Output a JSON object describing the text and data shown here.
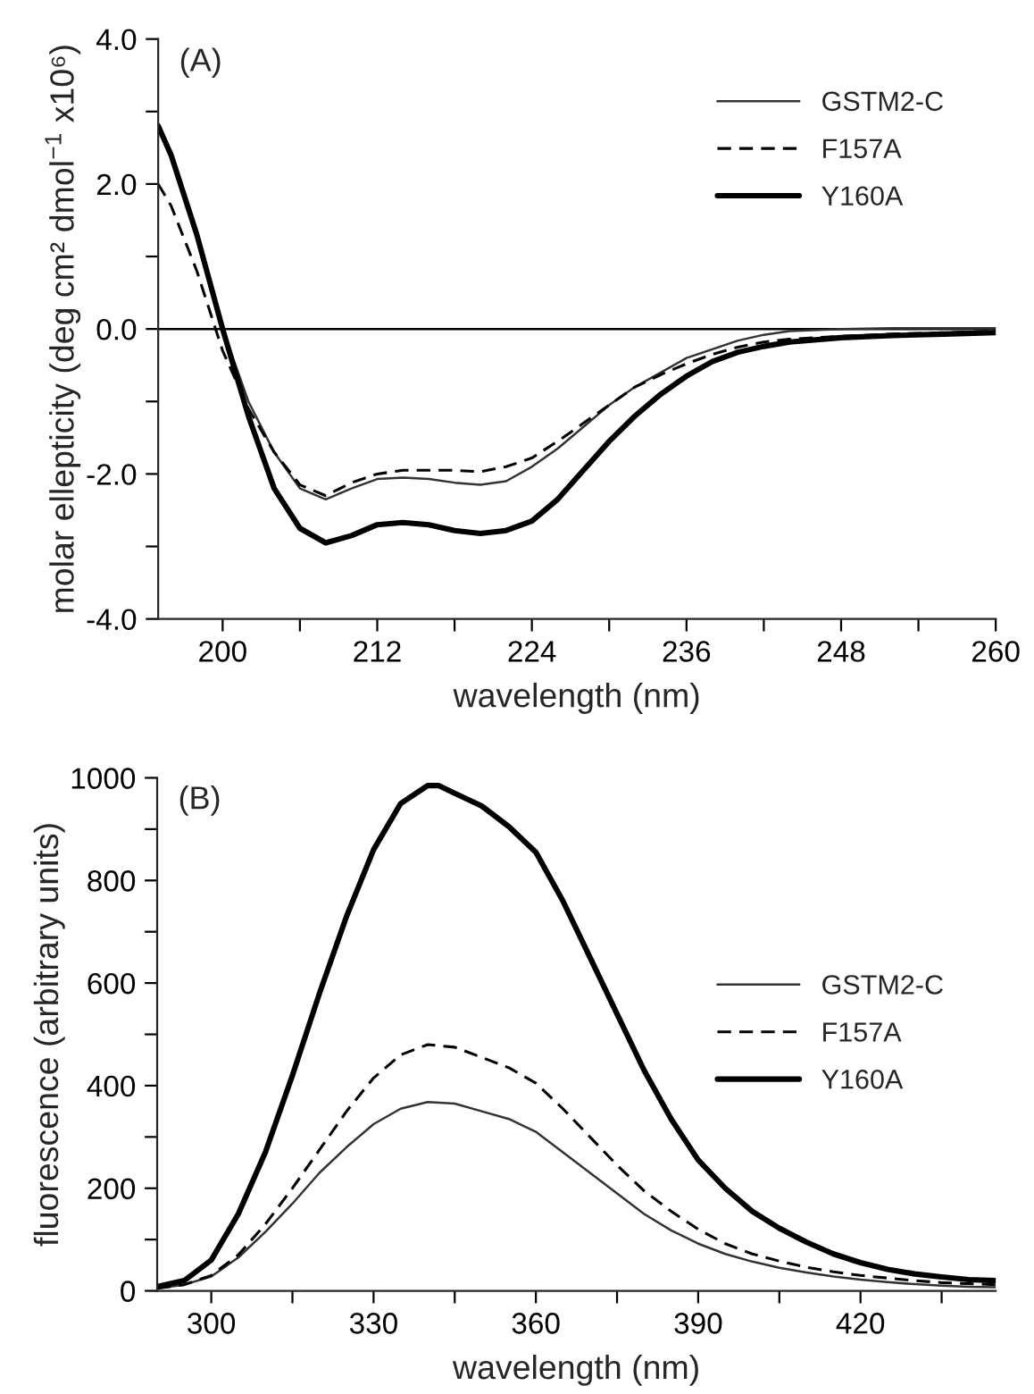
{
  "chart_data": [
    {
      "type": "line",
      "xlabel": "wavelength (nm)",
      "ylabel": "molar ellepticity (deg cm² dmol$^{−1}$ x10⁶)",
      "annotations": [
        "(A)"
      ],
      "xlim": [
        195,
        260
      ],
      "ylim": [
        -4,
        4
      ],
      "xticks": [
        200,
        {
          "value": 206,
          "label": null
        },
        212,
        {
          "value": 218,
          "label": null
        },
        224,
        {
          "value": 230,
          "label": null
        },
        236,
        {
          "value": 242,
          "label": null
        },
        248,
        {
          "value": 254,
          "label": null
        },
        260
      ],
      "yticks": [
        {
          "value": -4,
          "label": "-4.0"
        },
        {
          "value": -3,
          "label": null
        },
        {
          "value": -2,
          "label": "-2.0"
        },
        {
          "value": -1,
          "label": null
        },
        {
          "value": 0,
          "label": "0.0"
        },
        {
          "value": 1,
          "label": null
        },
        {
          "value": 2,
          "label": "2.0"
        },
        {
          "value": 3,
          "label": null
        },
        {
          "value": 4,
          "label": "4.0"
        }
      ],
      "ref_lines": [
        {
          "axis": "y",
          "value": 0,
          "color": "#000000"
        }
      ],
      "legend": "top right",
      "grid": false,
      "marker": "none",
      "series": [
        {
          "name": "GSTM2-C",
          "color": "#333333",
          "line_style": "solid",
          "x": [
            195,
            196,
            198,
            200,
            202,
            204,
            206,
            208,
            210,
            212,
            214,
            216,
            218,
            220,
            222,
            224,
            226,
            228,
            230,
            232,
            234,
            236,
            238,
            240,
            242,
            244,
            248,
            252,
            260
          ],
          "values": [
            2.8,
            2.4,
            1.3,
            0.0,
            -1.0,
            -1.7,
            -2.2,
            -2.35,
            -2.2,
            -2.07,
            -2.05,
            -2.07,
            -2.12,
            -2.15,
            -2.1,
            -1.9,
            -1.65,
            -1.35,
            -1.05,
            -0.8,
            -0.6,
            -0.4,
            -0.28,
            -0.16,
            -0.08,
            -0.03,
            0.0,
            0.01,
            0.01
          ]
        },
        {
          "name": "F157A",
          "color": "#000000",
          "line_style": "dashed",
          "x": [
            195,
            196,
            198,
            200,
            202,
            204,
            206,
            208,
            210,
            212,
            214,
            216,
            218,
            220,
            222,
            224,
            226,
            228,
            230,
            232,
            234,
            236,
            238,
            240,
            242,
            244,
            248,
            252,
            260
          ],
          "values": [
            2.0,
            1.7,
            0.8,
            -0.3,
            -1.1,
            -1.7,
            -2.15,
            -2.3,
            -2.12,
            -2.0,
            -1.95,
            -1.95,
            -1.95,
            -1.97,
            -1.9,
            -1.78,
            -1.55,
            -1.3,
            -1.05,
            -0.8,
            -0.63,
            -0.48,
            -0.35,
            -0.25,
            -0.18,
            -0.14,
            -0.1,
            -0.07,
            -0.03
          ]
        },
        {
          "name": "Y160A",
          "color": "#000000",
          "line_style": "solid",
          "x": [
            195,
            196,
            198,
            200,
            202,
            204,
            206,
            208,
            210,
            212,
            214,
            216,
            218,
            220,
            222,
            224,
            226,
            228,
            230,
            232,
            234,
            236,
            238,
            240,
            242,
            244,
            248,
            252,
            256,
            260
          ],
          "values": [
            2.8,
            2.4,
            1.3,
            0.0,
            -1.2,
            -2.2,
            -2.75,
            -2.95,
            -2.85,
            -2.7,
            -2.67,
            -2.7,
            -2.78,
            -2.82,
            -2.78,
            -2.65,
            -2.35,
            -1.95,
            -1.55,
            -1.2,
            -0.9,
            -0.65,
            -0.45,
            -0.32,
            -0.24,
            -0.18,
            -0.12,
            -0.09,
            -0.07,
            -0.05
          ]
        }
      ]
    },
    {
      "type": "line",
      "xlabel": "wavelength (nm)",
      "ylabel": "fluorescence (arbitrary units)",
      "annotations": [
        "(B)"
      ],
      "xlim": [
        290,
        445
      ],
      "ylim": [
        0,
        1000
      ],
      "xticks": [
        300,
        {
          "value": 315,
          "label": null
        },
        330,
        {
          "value": 345,
          "label": null
        },
        360,
        {
          "value": 375,
          "label": null
        },
        390,
        {
          "value": 405,
          "label": null
        },
        420,
        {
          "value": 435,
          "label": null
        }
      ],
      "yticks": [
        0,
        {
          "value": 100,
          "label": null
        },
        200,
        {
          "value": 300,
          "label": null
        },
        400,
        {
          "value": 500,
          "label": null
        },
        600,
        {
          "value": 700,
          "label": null
        },
        800,
        {
          "value": 900,
          "label": null
        },
        1000
      ],
      "legend": "right",
      "grid": false,
      "marker": "none",
      "series": [
        {
          "name": "GSTM2-C",
          "color": "#333333",
          "line_style": "solid",
          "x": [
            290,
            295,
            300,
            305,
            310,
            315,
            320,
            325,
            330,
            335,
            340,
            345,
            350,
            355,
            360,
            365,
            370,
            375,
            380,
            385,
            390,
            395,
            400,
            405,
            410,
            415,
            420,
            425,
            430,
            435,
            440,
            445
          ],
          "values": [
            5,
            12,
            28,
            65,
            115,
            170,
            230,
            280,
            325,
            355,
            368,
            365,
            350,
            335,
            310,
            270,
            230,
            190,
            150,
            118,
            92,
            72,
            57,
            45,
            36,
            28,
            22,
            17,
            13,
            10,
            8,
            7
          ]
        },
        {
          "name": "F157A",
          "color": "#000000",
          "line_style": "dashed",
          "x": [
            290,
            295,
            300,
            305,
            310,
            315,
            320,
            325,
            330,
            335,
            340,
            345,
            350,
            355,
            360,
            365,
            370,
            375,
            380,
            385,
            390,
            395,
            400,
            405,
            410,
            415,
            420,
            425,
            430,
            435,
            440,
            445
          ],
          "values": [
            5,
            12,
            30,
            70,
            130,
            200,
            275,
            350,
            415,
            460,
            480,
            475,
            455,
            435,
            405,
            355,
            300,
            245,
            195,
            155,
            120,
            92,
            72,
            58,
            46,
            37,
            30,
            25,
            20,
            16,
            14,
            12
          ]
        },
        {
          "name": "Y160A",
          "color": "#000000",
          "line_style": "solid",
          "x": [
            290,
            295,
            300,
            305,
            310,
            315,
            320,
            325,
            330,
            335,
            340,
            342,
            345,
            350,
            355,
            360,
            365,
            370,
            375,
            380,
            385,
            390,
            395,
            400,
            405,
            410,
            415,
            420,
            425,
            430,
            435,
            440,
            445
          ],
          "values": [
            8,
            20,
            60,
            150,
            270,
            420,
            580,
            730,
            860,
            950,
            985,
            985,
            970,
            945,
            905,
            855,
            760,
            650,
            540,
            430,
            335,
            255,
            200,
            155,
            122,
            95,
            72,
            55,
            42,
            33,
            27,
            22,
            20
          ]
        }
      ]
    }
  ]
}
